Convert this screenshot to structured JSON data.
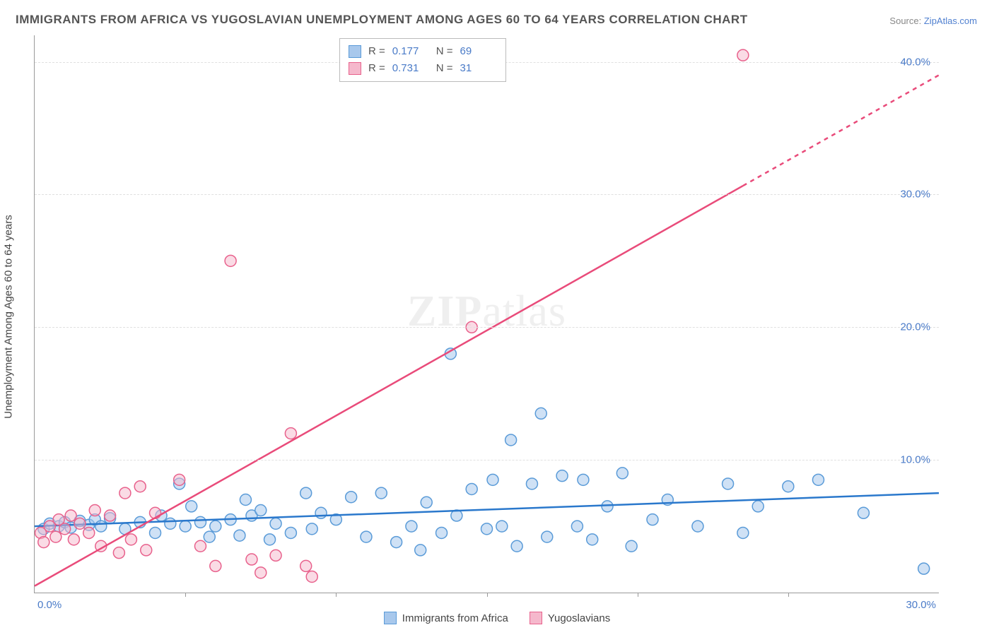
{
  "title": "IMMIGRANTS FROM AFRICA VS YUGOSLAVIAN UNEMPLOYMENT AMONG AGES 60 TO 64 YEARS CORRELATION CHART",
  "source_label": "Source:",
  "source_value": "ZipAtlas.com",
  "y_axis_label": "Unemployment Among Ages 60 to 64 years",
  "watermark_bold": "ZIP",
  "watermark_light": "atlas",
  "chart": {
    "type": "scatter",
    "xlim": [
      0,
      30
    ],
    "ylim": [
      0,
      42
    ],
    "x_ticks": [
      0,
      30
    ],
    "x_tick_labels": [
      "0.0%",
      "30.0%"
    ],
    "x_minor_ticks": [
      5,
      10,
      15,
      20,
      25
    ],
    "y_ticks": [
      10,
      20,
      30,
      40
    ],
    "y_tick_labels": [
      "10.0%",
      "20.0%",
      "30.0%",
      "40.0%"
    ],
    "background_color": "#ffffff",
    "grid_color": "#e0e0e0",
    "axis_color": "#999999",
    "marker_radius": 8,
    "marker_stroke_width": 1.5,
    "series": [
      {
        "name": "Immigrants from Africa",
        "fill_color": "#a8c8ec",
        "stroke_color": "#5a9bd8",
        "fill_opacity": 0.55,
        "r": 0.177,
        "n": 69,
        "trend": {
          "x1": 0,
          "y1": 5.0,
          "x2": 30,
          "y2": 7.5,
          "color": "#2a78cc",
          "width": 2.5
        },
        "points": [
          [
            0.3,
            4.8
          ],
          [
            0.5,
            5.2
          ],
          [
            0.8,
            5.0
          ],
          [
            1.0,
            5.3
          ],
          [
            1.2,
            4.9
          ],
          [
            1.5,
            5.4
          ],
          [
            1.8,
            5.1
          ],
          [
            2.0,
            5.5
          ],
          [
            2.2,
            5.0
          ],
          [
            2.5,
            5.6
          ],
          [
            3.0,
            4.8
          ],
          [
            3.5,
            5.3
          ],
          [
            4.0,
            4.5
          ],
          [
            4.2,
            5.8
          ],
          [
            4.5,
            5.2
          ],
          [
            4.8,
            8.2
          ],
          [
            5.0,
            5.0
          ],
          [
            5.2,
            6.5
          ],
          [
            5.5,
            5.3
          ],
          [
            5.8,
            4.2
          ],
          [
            6.0,
            5.0
          ],
          [
            6.5,
            5.5
          ],
          [
            6.8,
            4.3
          ],
          [
            7.0,
            7.0
          ],
          [
            7.2,
            5.8
          ],
          [
            7.5,
            6.2
          ],
          [
            7.8,
            4.0
          ],
          [
            8.0,
            5.2
          ],
          [
            8.5,
            4.5
          ],
          [
            9.0,
            7.5
          ],
          [
            9.2,
            4.8
          ],
          [
            9.5,
            6.0
          ],
          [
            10.0,
            5.5
          ],
          [
            10.5,
            7.2
          ],
          [
            11.0,
            4.2
          ],
          [
            11.5,
            7.5
          ],
          [
            12.0,
            3.8
          ],
          [
            12.5,
            5.0
          ],
          [
            12.8,
            3.2
          ],
          [
            13.0,
            6.8
          ],
          [
            13.5,
            4.5
          ],
          [
            13.8,
            18.0
          ],
          [
            14.0,
            5.8
          ],
          [
            14.5,
            7.8
          ],
          [
            15.0,
            4.8
          ],
          [
            15.2,
            8.5
          ],
          [
            15.5,
            5.0
          ],
          [
            15.8,
            11.5
          ],
          [
            16.0,
            3.5
          ],
          [
            16.5,
            8.2
          ],
          [
            16.8,
            13.5
          ],
          [
            17.0,
            4.2
          ],
          [
            17.5,
            8.8
          ],
          [
            18.0,
            5.0
          ],
          [
            18.2,
            8.5
          ],
          [
            18.5,
            4.0
          ],
          [
            19.0,
            6.5
          ],
          [
            19.5,
            9.0
          ],
          [
            19.8,
            3.5
          ],
          [
            20.5,
            5.5
          ],
          [
            21.0,
            7.0
          ],
          [
            22.0,
            5.0
          ],
          [
            23.0,
            8.2
          ],
          [
            23.5,
            4.5
          ],
          [
            24.0,
            6.5
          ],
          [
            25.0,
            8.0
          ],
          [
            26.0,
            8.5
          ],
          [
            27.5,
            6.0
          ],
          [
            29.5,
            1.8
          ]
        ]
      },
      {
        "name": "Yugoslavians",
        "fill_color": "#f5b8cc",
        "stroke_color": "#e8618c",
        "fill_opacity": 0.5,
        "r": 0.731,
        "n": 31,
        "trend": {
          "x1": 0,
          "y1": 0.5,
          "x2": 30,
          "y2": 39.0,
          "color": "#e94b7a",
          "width": 2.5,
          "dash_from_x": 23.5
        },
        "points": [
          [
            0.2,
            4.5
          ],
          [
            0.3,
            3.8
          ],
          [
            0.5,
            5.0
          ],
          [
            0.7,
            4.2
          ],
          [
            0.8,
            5.5
          ],
          [
            1.0,
            4.8
          ],
          [
            1.2,
            5.8
          ],
          [
            1.3,
            4.0
          ],
          [
            1.5,
            5.2
          ],
          [
            1.8,
            4.5
          ],
          [
            2.0,
            6.2
          ],
          [
            2.2,
            3.5
          ],
          [
            2.5,
            5.8
          ],
          [
            2.8,
            3.0
          ],
          [
            3.0,
            7.5
          ],
          [
            3.2,
            4.0
          ],
          [
            3.5,
            8.0
          ],
          [
            3.7,
            3.2
          ],
          [
            4.0,
            6.0
          ],
          [
            4.8,
            8.5
          ],
          [
            5.5,
            3.5
          ],
          [
            6.0,
            2.0
          ],
          [
            6.5,
            25.0
          ],
          [
            7.2,
            2.5
          ],
          [
            7.5,
            1.5
          ],
          [
            8.0,
            2.8
          ],
          [
            8.5,
            12.0
          ],
          [
            9.0,
            2.0
          ],
          [
            9.2,
            1.2
          ],
          [
            14.5,
            20.0
          ],
          [
            23.5,
            40.5
          ]
        ]
      }
    ]
  },
  "legend_stats": {
    "r_label": "R =",
    "n_label": "N ="
  },
  "bottom_legend": {
    "series1_label": "Immigrants from Africa",
    "series2_label": "Yugoslavians"
  }
}
